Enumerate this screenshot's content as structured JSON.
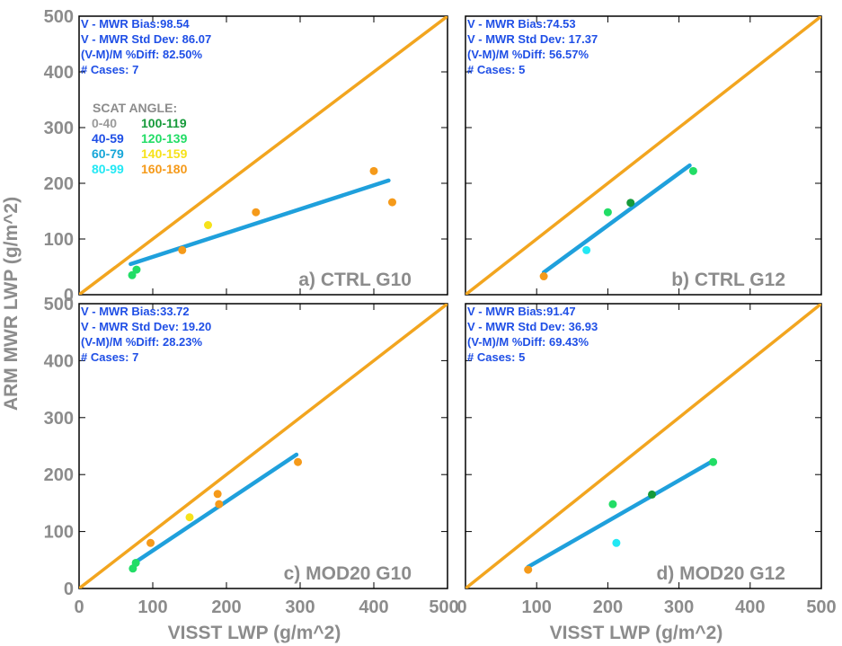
{
  "chart_data": {
    "type": "scatter",
    "xlabel": "VISST LWP (g/m^2)",
    "ylabel": "ARM MWR LWP (g/m^2)",
    "xlim": [
      0,
      500
    ],
    "ylim": [
      0,
      500
    ],
    "ticks": [
      "0",
      "100",
      "200",
      "300",
      "400",
      "500"
    ],
    "one_to_one_color": "#f2a51f",
    "fit_color": "#1fa0dc",
    "legend": {
      "title": "SCAT ANGLE:",
      "entries": [
        {
          "label": "0-40",
          "color": "#9a9a9a"
        },
        {
          "label": "40-59",
          "color": "#1f4fe6"
        },
        {
          "label": "60-79",
          "color": "#16a6d8"
        },
        {
          "label": "80-99",
          "color": "#22e8f4"
        },
        {
          "label": "100-119",
          "color": "#169a3a"
        },
        {
          "label": "120-139",
          "color": "#22dd66"
        },
        {
          "label": "140-159",
          "color": "#f6e21a"
        },
        {
          "label": "160-180",
          "color": "#f59a1a"
        }
      ]
    },
    "panels": [
      {
        "label": "a) CTRL G10",
        "stats": {
          "bias": "V - MWR Bias:98.54",
          "std": "V - MWR Std Dev: 86.07",
          "pdiff": "(V-M)/M %Diff:  82.50%",
          "cases": "# Cases:     7"
        },
        "fit": [
          [
            70,
            55
          ],
          [
            420,
            205
          ]
        ],
        "points": [
          {
            "x": 72,
            "y": 35,
            "color": "#22dd66"
          },
          {
            "x": 78,
            "y": 45,
            "color": "#22dd66"
          },
          {
            "x": 140,
            "y": 80,
            "color": "#f59a1a"
          },
          {
            "x": 175,
            "y": 125,
            "color": "#f6e21a"
          },
          {
            "x": 240,
            "y": 148,
            "color": "#f59a1a"
          },
          {
            "x": 400,
            "y": 222,
            "color": "#f59a1a"
          },
          {
            "x": 425,
            "y": 166,
            "color": "#f59a1a"
          }
        ]
      },
      {
        "label": "b) CTRL G12",
        "stats": {
          "bias": "V - MWR Bias:74.53",
          "std": "V - MWR Std Dev: 17.37",
          "pdiff": "(V-M)/M %Diff:  56.57%",
          "cases": "# Cases:     5"
        },
        "fit": [
          [
            110,
            40
          ],
          [
            315,
            232
          ]
        ],
        "points": [
          {
            "x": 110,
            "y": 33,
            "color": "#f59a1a"
          },
          {
            "x": 170,
            "y": 80,
            "color": "#22e8f4"
          },
          {
            "x": 200,
            "y": 148,
            "color": "#22dd66"
          },
          {
            "x": 232,
            "y": 165,
            "color": "#169a3a"
          },
          {
            "x": 320,
            "y": 222,
            "color": "#22dd66"
          }
        ]
      },
      {
        "label": "c) MOD20 G10",
        "stats": {
          "bias": "V - MWR Bias:33.72",
          "std": "V - MWR Std Dev: 19.20",
          "pdiff": "(V-M)/M %Diff:  28.23%",
          "cases": "# Cases:     7"
        },
        "fit": [
          [
            75,
            45
          ],
          [
            295,
            235
          ]
        ],
        "points": [
          {
            "x": 73,
            "y": 35,
            "color": "#22dd66"
          },
          {
            "x": 77,
            "y": 45,
            "color": "#22dd66"
          },
          {
            "x": 97,
            "y": 80,
            "color": "#f59a1a"
          },
          {
            "x": 150,
            "y": 125,
            "color": "#f6e21a"
          },
          {
            "x": 190,
            "y": 148,
            "color": "#f59a1a"
          },
          {
            "x": 188,
            "y": 166,
            "color": "#f59a1a"
          },
          {
            "x": 297,
            "y": 222,
            "color": "#f59a1a"
          }
        ]
      },
      {
        "label": "d) MOD20 G12",
        "stats": {
          "bias": "V - MWR Bias:91.47",
          "std": "V - MWR Std Dev: 36.93",
          "pdiff": "(V-M)/M %Diff:  69.43%",
          "cases": "# Cases:     5"
        },
        "fit": [
          [
            88,
            38
          ],
          [
            345,
            222
          ]
        ],
        "points": [
          {
            "x": 88,
            "y": 33,
            "color": "#f59a1a"
          },
          {
            "x": 212,
            "y": 80,
            "color": "#22e8f4"
          },
          {
            "x": 207,
            "y": 148,
            "color": "#22dd66"
          },
          {
            "x": 262,
            "y": 165,
            "color": "#169a3a"
          },
          {
            "x": 348,
            "y": 222,
            "color": "#22dd66"
          }
        ]
      }
    ]
  }
}
